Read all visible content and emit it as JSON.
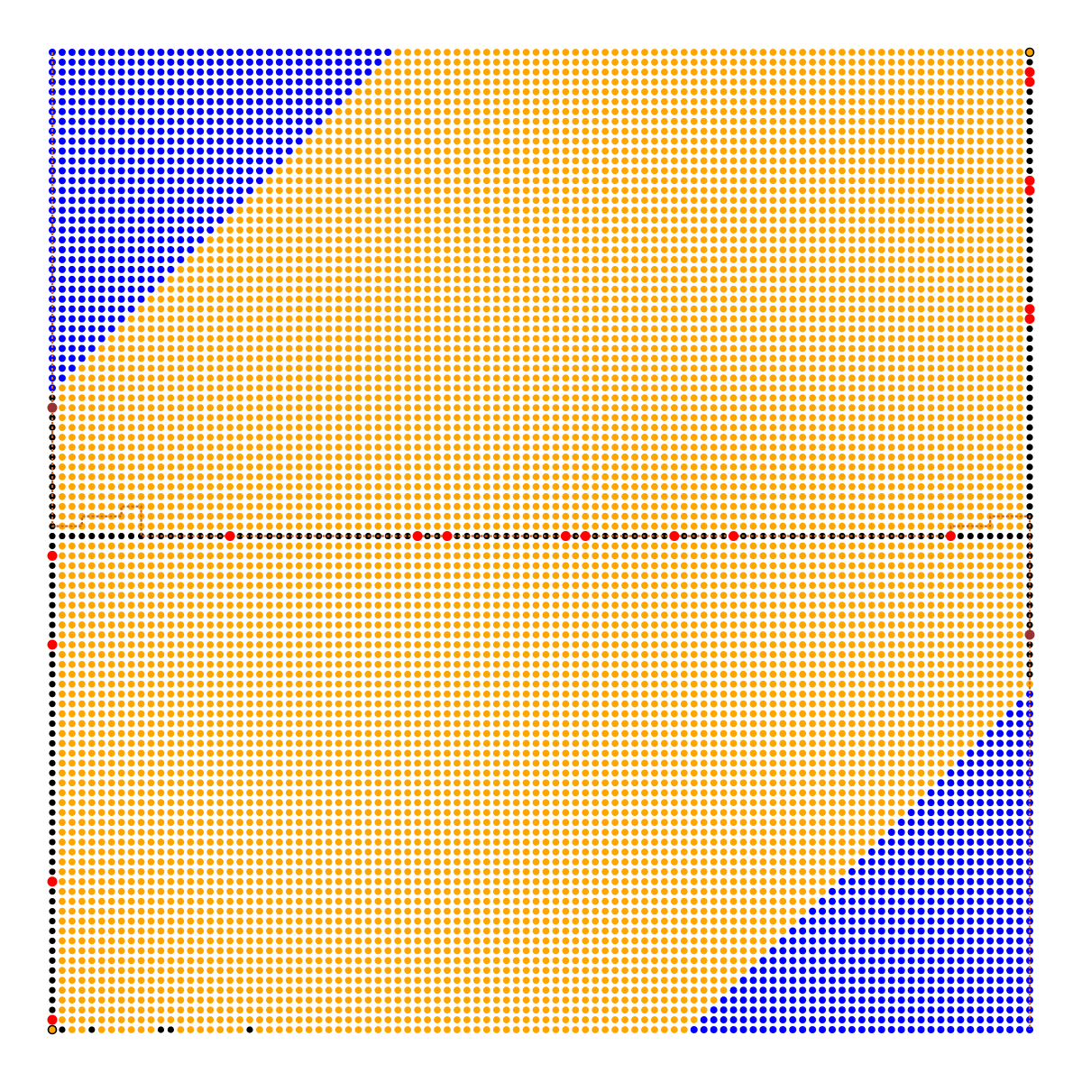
{
  "colors": {
    "background": "#ffffff",
    "explored_node": "#ffa500",
    "unexplored_node": "#0000ff",
    "wall_node": "#000000",
    "key_node": "#ff0000",
    "endpoint_node": "#993333",
    "path_line": "#cc6622",
    "terminal_ring": "#000000"
  },
  "grid": {
    "columns": 100,
    "rows": 100
  },
  "unexplored_regions": [
    {
      "corner": "top-left",
      "top_extent_fraction": 0.35,
      "left_extent_fraction": 0.35
    },
    {
      "corner": "bottom-right",
      "bottom_extent_fraction": 0.345,
      "right_extent_fraction": 0.345
    }
  ],
  "walls": {
    "left_column_from_row": 35,
    "right_column_to_row": 63,
    "middle_row": 49
  },
  "path": {
    "start": {
      "col": 0,
      "row": 0
    },
    "goal": {
      "col": 99,
      "row": 99
    }
  }
}
